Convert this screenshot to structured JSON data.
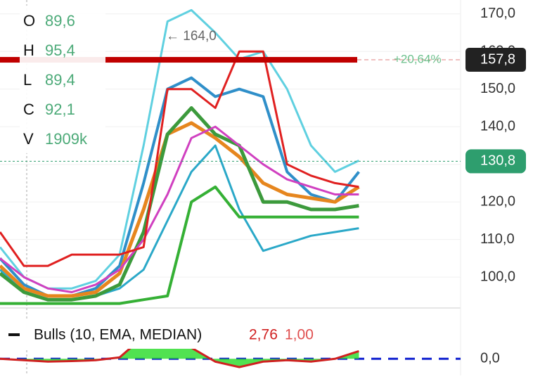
{
  "chart_data": [
    {
      "type": "line",
      "x": [
        0,
        2,
        4,
        6,
        8,
        10,
        12,
        14,
        16,
        18,
        20,
        22,
        24,
        26,
        28,
        30
      ],
      "xlim": [
        0,
        38.5
      ],
      "ylim": [
        91.8,
        173.7
      ],
      "yticks": [
        {
          "value": 100,
          "label": "100,0"
        },
        {
          "value": 110,
          "label": "110,0"
        },
        {
          "value": 120,
          "label": "120,0"
        },
        {
          "value": 130,
          "label": "130,0"
        },
        {
          "value": 140,
          "label": "140,0"
        },
        {
          "value": 150,
          "label": "150,0"
        },
        {
          "value": 160,
          "label": "160,0"
        },
        {
          "value": 170,
          "label": "170,0"
        }
      ],
      "series": [
        {
          "color": "#5fd0e0",
          "width": 3,
          "values": [
            108,
            100,
            97,
            97,
            99,
            106,
            135,
            168,
            171,
            165,
            158,
            160,
            150,
            135,
            128,
            131
          ]
        },
        {
          "color": "#2aa8c8",
          "width": 3,
          "values": [
            102,
            96,
            94,
            94,
            95,
            97,
            102,
            115,
            128,
            135,
            118,
            107,
            109,
            111,
            112,
            113
          ]
        },
        {
          "color": "#2f8fc9",
          "width": 4,
          "values": [
            105,
            98,
            95,
            95,
            97,
            103,
            125,
            150,
            153,
            148,
            150,
            148,
            128,
            122,
            120,
            128
          ]
        },
        {
          "color": "#e6861e",
          "width": 5,
          "values": [
            103,
            97,
            95,
            95,
            96,
            101,
            118,
            138,
            141,
            137,
            132,
            125,
            122,
            121,
            120,
            124
          ]
        },
        {
          "color": "#3c9a3c",
          "width": 5,
          "values": [
            101,
            96,
            94,
            94,
            95,
            98,
            112,
            138,
            145,
            138,
            135,
            120,
            120,
            118,
            118,
            119
          ]
        },
        {
          "color": "#d040c0",
          "width": 3,
          "values": [
            105,
            100,
            97,
            96,
            98,
            102,
            110,
            122,
            137,
            140,
            135,
            130,
            126,
            124,
            122,
            122
          ]
        },
        {
          "color": "#e02020",
          "width": 3,
          "values": [
            112,
            103,
            103,
            106,
            106,
            106,
            108,
            150,
            150,
            145,
            160,
            160,
            130,
            127,
            125,
            124
          ]
        },
        {
          "color": "#35b035",
          "width": 4,
          "values": [
            93,
            93,
            93,
            93,
            93,
            93,
            94,
            95,
            120,
            124,
            116,
            116,
            116,
            116,
            116,
            116
          ]
        }
      ],
      "price_lines": [
        {
          "value": 157.8,
          "label": "157,8",
          "color": "#c00000",
          "change": "+20,64%"
        },
        {
          "value": 130.8,
          "label": "130,8",
          "color": "#2e9e6e"
        }
      ],
      "annotation": {
        "value": 164,
        "label": "← 164,0"
      },
      "ohlc": [
        {
          "label": "O",
          "value": "89,6"
        },
        {
          "label": "H",
          "value": "95,4"
        },
        {
          "label": "L",
          "value": "89,4"
        },
        {
          "label": "C",
          "value": "92,1"
        },
        {
          "label": "V",
          "value": "1909k"
        }
      ]
    },
    {
      "type": "area",
      "name": "Bulls (10, EMA, MEDIAN)",
      "readouts": [
        "2,76",
        "1,00"
      ],
      "x": [
        0,
        2,
        4,
        6,
        8,
        10,
        12,
        14,
        16,
        18,
        20,
        22,
        24,
        26,
        28,
        30
      ],
      "xlim": [
        0,
        38.5
      ],
      "ylim": [
        -6,
        14
      ],
      "yticks": [
        {
          "value": 0,
          "label": "0,0"
        }
      ],
      "color": "#d02020",
      "fill": "#33dd33",
      "values": [
        0,
        -0.5,
        -1,
        -0.8,
        -0.5,
        0.5,
        8,
        12,
        4,
        -1,
        -3,
        -1,
        -0.5,
        -1,
        0,
        2.76
      ]
    }
  ]
}
